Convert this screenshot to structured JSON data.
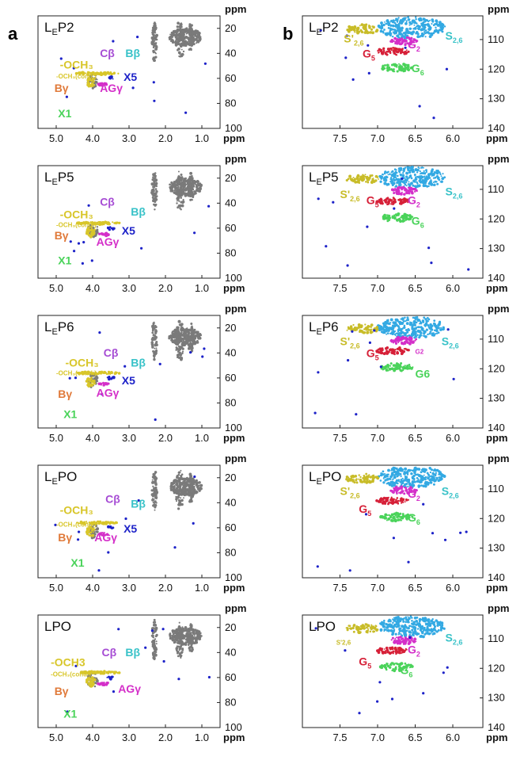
{
  "panel_labels": [
    "a",
    "b"
  ],
  "colors": {
    "grey": "#7a7a7a",
    "blue": "#1d22c8",
    "yellow": "#d8c62a",
    "purple": "#a64cd4",
    "magenta": "#d42fc9",
    "cyan": "#38c2c8",
    "orange": "#e07a3a",
    "green": "#4ad35a",
    "red": "#d62038",
    "skyblue": "#33a9e3",
    "olive": "#c8bc28"
  },
  "chart_data": [
    {
      "type": "heatmap",
      "id": "a1",
      "title_main": "L",
      "title_sub": "E",
      "title_tail": "P2",
      "xlim": [
        5.5,
        0.5
      ],
      "ylim": [
        100,
        10
      ],
      "xticks": [
        "5.0",
        "4.0",
        "3.0",
        "2.0",
        "1.0"
      ],
      "xtick_values": [
        5.0,
        4.0,
        3.0,
        2.0,
        1.0
      ],
      "yticks": [
        "20",
        "40",
        "60",
        "80",
        "100"
      ],
      "ytick_values": [
        20,
        40,
        60,
        80,
        100
      ],
      "xunit": "ppm",
      "yunit": "ppm",
      "labels": [
        {
          "text": "-OCH₃",
          "color": "yellow",
          "x": 4.9,
          "y": 52
        },
        {
          "text": "-OCH₃(cond.)",
          "color": "yellow",
          "x": 5.0,
          "y": 60,
          "small": true
        },
        {
          "text": "Cβ",
          "color": "purple",
          "x": 3.8,
          "y": 43
        },
        {
          "text": "Bβ",
          "color": "cyan",
          "x": 3.1,
          "y": 43
        },
        {
          "text": "X5",
          "color": "blue",
          "x": 3.15,
          "y": 62
        },
        {
          "text": "AGγ",
          "color": "magenta",
          "x": 3.8,
          "y": 71
        },
        {
          "text": "Bγ",
          "color": "orange",
          "x": 5.05,
          "y": 71
        },
        {
          "text": "X1",
          "color": "green",
          "x": 4.95,
          "y": 91
        }
      ]
    },
    {
      "type": "heatmap",
      "id": "a2",
      "title_main": "L",
      "title_sub": "E",
      "title_tail": "P5",
      "xlim": [
        5.5,
        0.5
      ],
      "ylim": [
        100,
        10
      ],
      "xticks": [
        "5.0",
        "4.0",
        "3.0",
        "2.0",
        "1.0"
      ],
      "xtick_values": [
        5.0,
        4.0,
        3.0,
        2.0,
        1.0
      ],
      "yticks": [
        "20",
        "40",
        "60",
        "80",
        "100"
      ],
      "ytick_values": [
        20,
        40,
        60,
        80,
        100
      ],
      "xunit": "ppm",
      "yunit": "ppm",
      "labels": [
        {
          "text": "-OCH₃",
          "color": "yellow",
          "x": 4.9,
          "y": 52
        },
        {
          "text": "-OCH₃(cond.)",
          "color": "yellow",
          "x": 5.0,
          "y": 59,
          "small": true
        },
        {
          "text": "Cβ",
          "color": "purple",
          "x": 3.8,
          "y": 42
        },
        {
          "text": "Bβ",
          "color": "cyan",
          "x": 2.95,
          "y": 50
        },
        {
          "text": "X5",
          "color": "blue",
          "x": 3.2,
          "y": 65
        },
        {
          "text": "AGγ",
          "color": "magenta",
          "x": 3.9,
          "y": 74
        },
        {
          "text": "Bγ",
          "color": "orange",
          "x": 5.05,
          "y": 69
        },
        {
          "text": "X1",
          "color": "green",
          "x": 4.95,
          "y": 89
        }
      ]
    },
    {
      "type": "heatmap",
      "id": "a3",
      "title_main": "L",
      "title_sub": "E",
      "title_tail": "P6",
      "xlim": [
        5.5,
        0.5
      ],
      "ylim": [
        100,
        10
      ],
      "xticks": [
        "5.0",
        "4.0",
        "3.0",
        "2.0",
        "1.0"
      ],
      "xtick_values": [
        5.0,
        4.0,
        3.0,
        2.0,
        1.0
      ],
      "yticks": [
        "20",
        "40",
        "60",
        "80",
        "100"
      ],
      "ytick_values": [
        20,
        40,
        60,
        80,
        100
      ],
      "xunit": "ppm",
      "yunit": "ppm",
      "labels": [
        {
          "text": "-OCH₃",
          "color": "yellow",
          "x": 4.75,
          "y": 51
        },
        {
          "text": "-OCH₃(cond.)",
          "color": "yellow",
          "x": 5.0,
          "y": 58,
          "small": true
        },
        {
          "text": "Cβ",
          "color": "purple",
          "x": 3.7,
          "y": 43
        },
        {
          "text": "Bβ",
          "color": "cyan",
          "x": 2.95,
          "y": 51
        },
        {
          "text": "X5",
          "color": "blue",
          "x": 3.2,
          "y": 65
        },
        {
          "text": "AGγ",
          "color": "magenta",
          "x": 3.9,
          "y": 75
        },
        {
          "text": "Bγ",
          "color": "orange",
          "x": 4.95,
          "y": 76
        },
        {
          "text": "X1",
          "color": "green",
          "x": 4.8,
          "y": 92
        }
      ]
    },
    {
      "type": "heatmap",
      "id": "a4",
      "title_main": "L",
      "title_sub": "E",
      "title_tail": "PO",
      "xlim": [
        5.5,
        0.5
      ],
      "ylim": [
        100,
        10
      ],
      "xticks": [
        "5.0",
        "4.0",
        "3.0",
        "2.0",
        "1.0"
      ],
      "xtick_values": [
        5.0,
        4.0,
        3.0,
        2.0,
        1.0
      ],
      "yticks": [
        "20",
        "40",
        "60",
        "80",
        "100"
      ],
      "ytick_values": [
        20,
        40,
        60,
        80,
        100
      ],
      "xunit": "ppm",
      "yunit": "ppm",
      "labels": [
        {
          "text": "-OCH₃",
          "color": "yellow",
          "x": 4.9,
          "y": 49
        },
        {
          "text": "-OCH₃(cond.)",
          "color": "yellow",
          "x": 5.0,
          "y": 59,
          "small": true
        },
        {
          "text": "Cβ",
          "color": "purple",
          "x": 3.65,
          "y": 40
        },
        {
          "text": "Bβ",
          "color": "cyan",
          "x": 2.95,
          "y": 44
        },
        {
          "text": "X5",
          "color": "blue",
          "x": 3.15,
          "y": 64
        },
        {
          "text": "AGγ",
          "color": "magenta",
          "x": 3.95,
          "y": 71
        },
        {
          "text": "Bγ",
          "color": "orange",
          "x": 4.95,
          "y": 71
        },
        {
          "text": "X1",
          "color": "green",
          "x": 4.6,
          "y": 91
        }
      ]
    },
    {
      "type": "heatmap",
      "id": "a5",
      "title_main": "LPO",
      "title_sub": "",
      "title_tail": "",
      "xlim": [
        5.5,
        0.5
      ],
      "ylim": [
        100,
        10
      ],
      "xticks": [
        "5.0",
        "4.0",
        "3.0",
        "2.0",
        "1.0"
      ],
      "xtick_values": [
        5.0,
        4.0,
        3.0,
        2.0,
        1.0
      ],
      "yticks": [
        "20",
        "40",
        "60",
        "80",
        "100"
      ],
      "ytick_values": [
        20,
        40,
        60,
        80,
        100
      ],
      "xunit": "ppm",
      "yunit": "ppm",
      "labels": [
        {
          "text": "-OCH3",
          "color": "yellow",
          "x": 5.15,
          "y": 51
        },
        {
          "text": "-OCH₃(cond.)",
          "color": "yellow",
          "x": 5.15,
          "y": 59,
          "small": true
        },
        {
          "text": "Cβ",
          "color": "purple",
          "x": 3.75,
          "y": 43
        },
        {
          "text": "Bβ",
          "color": "cyan",
          "x": 3.1,
          "y": 43
        },
        {
          "text": "AGγ",
          "color": "magenta",
          "x": 3.3,
          "y": 72
        },
        {
          "text": "Bγ",
          "color": "orange",
          "x": 5.05,
          "y": 74
        },
        {
          "text": "X1",
          "color": "green",
          "x": 4.8,
          "y": 92
        }
      ]
    },
    {
      "type": "heatmap",
      "id": "b1",
      "title_main": "L",
      "title_sub": "E",
      "title_tail": "P2",
      "xlim": [
        8.0,
        5.6
      ],
      "ylim": [
        140,
        102
      ],
      "xticks": [
        "7.5",
        "7.0",
        "6.5",
        "6.0"
      ],
      "xtick_values": [
        7.5,
        7.0,
        6.5,
        6.0
      ],
      "yticks": [
        "110",
        "120",
        "130",
        "140"
      ],
      "ytick_values": [
        110,
        120,
        130,
        140
      ],
      "xunit": "ppm",
      "yunit": "ppm",
      "labels": [
        {
          "text": "S'",
          "sub": "2,6",
          "color": "olive",
          "x": 7.45,
          "y": 111
        },
        {
          "text": "S",
          "sub": "2,6",
          "color": "cyan",
          "x": 6.1,
          "y": 110
        },
        {
          "text": "G",
          "sub": "2",
          "color": "magenta",
          "x": 6.6,
          "y": 113
        },
        {
          "text": "G",
          "sub": "5",
          "color": "red",
          "x": 7.2,
          "y": 116
        },
        {
          "text": "G",
          "sub": "6",
          "color": "green",
          "x": 6.55,
          "y": 121
        }
      ]
    },
    {
      "type": "heatmap",
      "id": "b2",
      "title_main": "L",
      "title_sub": "E",
      "title_tail": "P5",
      "xlim": [
        8.0,
        5.6
      ],
      "ylim": [
        140,
        102
      ],
      "xticks": [
        "7.5",
        "7.0",
        "6.5",
        "6.0"
      ],
      "xtick_values": [
        7.5,
        7.0,
        6.5,
        6.0
      ],
      "yticks": [
        "110",
        "120",
        "130",
        "140"
      ],
      "ytick_values": [
        110,
        120,
        130,
        140
      ],
      "xunit": "ppm",
      "yunit": "ppm",
      "labels": [
        {
          "text": "S'",
          "sub": "2,6",
          "color": "olive",
          "x": 7.5,
          "y": 113
        },
        {
          "text": "S",
          "sub": "2,6",
          "color": "cyan",
          "x": 6.1,
          "y": 112
        },
        {
          "text": "G",
          "sub": "2",
          "color": "magenta",
          "x": 6.6,
          "y": 115
        },
        {
          "text": "G",
          "sub": "5",
          "color": "red",
          "x": 7.15,
          "y": 115
        },
        {
          "text": "G",
          "sub": "6",
          "color": "green",
          "x": 6.55,
          "y": 122
        }
      ]
    },
    {
      "type": "heatmap",
      "id": "b3",
      "title_main": "L",
      "title_sub": "E",
      "title_tail": "P6",
      "xlim": [
        8.0,
        5.6
      ],
      "ylim": [
        140,
        102
      ],
      "xticks": [
        "7.5",
        "7.0",
        "6.5",
        "6.0"
      ],
      "xtick_values": [
        7.5,
        7.0,
        6.5,
        6.0
      ],
      "yticks": [
        "110",
        "120",
        "130",
        "140"
      ],
      "ytick_values": [
        110,
        120,
        130,
        140
      ],
      "xunit": "ppm",
      "yunit": "ppm",
      "labels": [
        {
          "text": "S'",
          "sub": "2,6",
          "color": "olive",
          "x": 7.5,
          "y": 112
        },
        {
          "text": "S",
          "sub": "2,6",
          "color": "cyan",
          "x": 6.15,
          "y": 112
        },
        {
          "text": "G2",
          "sub": "",
          "color": "magenta",
          "x": 6.5,
          "y": 115,
          "small": true
        },
        {
          "text": "G",
          "sub": "5",
          "color": "red",
          "x": 7.15,
          "y": 116
        },
        {
          "text": "G6",
          "sub": "",
          "color": "green",
          "x": 6.5,
          "y": 123
        }
      ]
    },
    {
      "type": "heatmap",
      "id": "b4",
      "title_main": "L",
      "title_sub": "E",
      "title_tail": "PO",
      "xlim": [
        8.0,
        5.6
      ],
      "ylim": [
        140,
        102
      ],
      "xticks": [
        "7.5",
        "7.0",
        "6.5",
        "6.0"
      ],
      "xtick_values": [
        7.5,
        7.0,
        6.5,
        6.0
      ],
      "yticks": [
        "110",
        "120",
        "130",
        "140"
      ],
      "ytick_values": [
        110,
        120,
        130,
        140
      ],
      "xunit": "ppm",
      "yunit": "ppm",
      "labels": [
        {
          "text": "S'",
          "sub": "2,6",
          "color": "olive",
          "x": 7.5,
          "y": 112
        },
        {
          "text": "S",
          "sub": "2,6",
          "color": "cyan",
          "x": 6.15,
          "y": 112
        },
        {
          "text": "G",
          "sub": "2",
          "color": "magenta",
          "x": 6.6,
          "y": 113
        },
        {
          "text": "G",
          "sub": "5",
          "color": "red",
          "x": 7.25,
          "y": 118
        },
        {
          "text": "G",
          "sub": "6",
          "color": "green",
          "x": 6.6,
          "y": 121
        }
      ]
    },
    {
      "type": "heatmap",
      "id": "b5",
      "title_main": "LPO",
      "title_sub": "",
      "title_tail": "",
      "xlim": [
        8.0,
        5.6
      ],
      "ylim": [
        140,
        102
      ],
      "xticks": [
        "7.5",
        "7.0",
        "6.5",
        "6.0"
      ],
      "xtick_values": [
        7.5,
        7.0,
        6.5,
        6.0
      ],
      "yticks": [
        "110",
        "120",
        "130",
        "140"
      ],
      "ytick_values": [
        110,
        120,
        130,
        140
      ],
      "xunit": "ppm",
      "yunit": "ppm",
      "labels": [
        {
          "text": "S'2,6",
          "sub": "",
          "color": "olive",
          "x": 7.55,
          "y": 112,
          "small": true
        },
        {
          "text": "S",
          "sub": "2,6",
          "color": "cyan",
          "x": 6.1,
          "y": 111
        },
        {
          "text": "G",
          "sub": "2",
          "color": "magenta",
          "x": 6.6,
          "y": 115
        },
        {
          "text": "G",
          "sub": "5",
          "color": "red",
          "x": 7.25,
          "y": 119
        },
        {
          "text": "G",
          "sub": "6",
          "color": "green",
          "x": 6.7,
          "y": 122
        }
      ]
    }
  ]
}
